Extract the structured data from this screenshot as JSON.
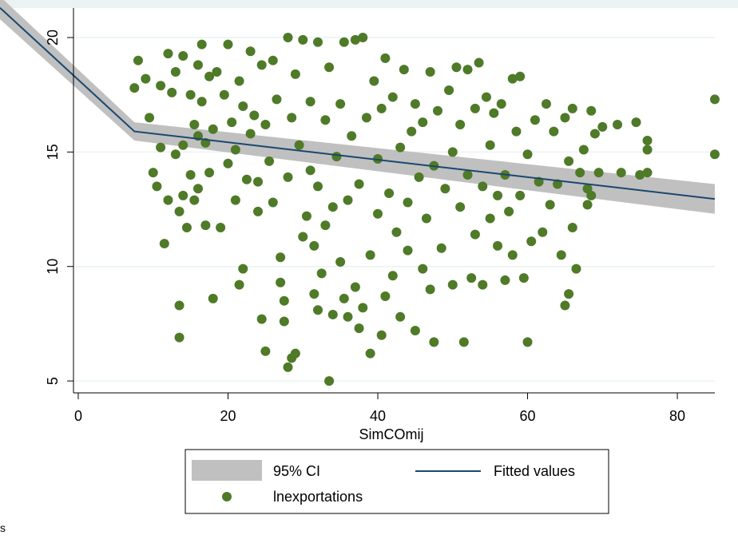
{
  "chart_data": {
    "type": "scatter",
    "x_label": "SimCOmij",
    "xlim": [
      -10.45,
      88.1
    ],
    "ylim": [
      4.48,
      21.64
    ],
    "xticks": [
      0,
      20,
      40,
      60,
      80
    ],
    "yticks": [
      5,
      10,
      15,
      20
    ],
    "grid": true,
    "ci": {
      "name": "95% CI",
      "color": "#c0c0c0",
      "x": [
        -10.45,
        7.5,
        85
      ],
      "lower": [
        20.8,
        15.5,
        12.3
      ],
      "upper": [
        21.8,
        16.3,
        13.6
      ]
    },
    "fit": {
      "name": "Fitted values",
      "color": "#1a476f",
      "x": [
        -10.45,
        7.5,
        85
      ],
      "values": [
        21.3,
        15.9,
        12.95
      ]
    },
    "series": [
      {
        "name": "lnexportations",
        "color": "#4f7a28",
        "x": [
          7.5,
          8,
          9,
          9.5,
          10,
          10.5,
          11,
          11,
          11.5,
          12,
          12,
          12.5,
          13,
          13,
          13.5,
          13.5,
          13.5,
          14,
          14,
          14,
          14.5,
          15,
          15,
          15.5,
          15.5,
          16,
          16,
          16,
          16.5,
          16.5,
          17,
          17,
          17.5,
          17.5,
          18,
          18,
          18.5,
          19,
          19.5,
          20,
          20,
          20.5,
          21,
          21,
          21.5,
          21.5,
          22,
          22,
          22.5,
          23,
          23,
          23.5,
          24,
          24,
          24.5,
          24.5,
          25,
          25,
          25.5,
          26,
          26,
          26.5,
          27,
          27,
          27.5,
          27.5,
          28,
          28,
          28,
          28.5,
          28.5,
          29,
          29,
          29.5,
          30,
          30,
          30.5,
          31,
          31,
          31.5,
          31.5,
          32,
          32,
          32,
          32.5,
          33,
          33,
          33.5,
          33.5,
          34,
          34,
          34.5,
          35,
          35,
          35.5,
          35.5,
          36,
          36,
          36.5,
          37,
          37,
          37.5,
          37.5,
          38,
          38,
          38.5,
          39,
          39,
          39.5,
          40,
          40,
          40.5,
          40.5,
          41,
          41,
          41.5,
          42,
          42,
          42.5,
          43,
          43,
          43.5,
          44,
          44,
          44.5,
          45,
          45,
          45.5,
          46,
          46,
          46.5,
          47,
          47,
          47.5,
          47.5,
          48,
          48.5,
          49,
          49.5,
          50,
          50,
          50.5,
          51,
          51,
          51.5,
          52,
          52,
          52.5,
          53,
          53,
          53.5,
          54,
          54,
          54.5,
          55,
          55,
          55.5,
          56,
          56,
          56.5,
          57,
          57,
          57.5,
          58,
          58,
          58.5,
          59,
          59,
          59.5,
          60,
          60,
          60.5,
          61,
          61.5,
          62,
          62.5,
          63,
          63.5,
          64,
          64.5,
          65,
          65,
          65.5,
          65.5,
          66,
          66,
          66.5,
          67,
          67.5,
          68,
          68,
          68.5,
          68.5,
          69,
          69.5,
          70,
          72,
          72.5,
          74.5,
          75,
          76,
          76,
          76,
          85,
          85
        ],
        "values": [
          17.8,
          19,
          18.2,
          16.5,
          14.1,
          13.5,
          17.9,
          15.2,
          11,
          19.3,
          12.9,
          17.6,
          18.5,
          14.9,
          8.3,
          6.9,
          12.4,
          19.2,
          15.3,
          13.1,
          11.7,
          17.5,
          14,
          16.2,
          12.9,
          18.8,
          15.7,
          13.4,
          19.7,
          17.2,
          15.4,
          11.8,
          18.3,
          14.1,
          8.6,
          16,
          18.5,
          11.7,
          17.5,
          19.7,
          14.5,
          16.3,
          15.1,
          12.9,
          9.2,
          18.1,
          9.9,
          17,
          13.8,
          19.4,
          15.8,
          16.6,
          13.7,
          12.4,
          7.7,
          18.8,
          16.2,
          6.3,
          14.6,
          19,
          12.8,
          17.3,
          10.4,
          9.3,
          8.5,
          7.6,
          20,
          5.6,
          13.9,
          6,
          16.5,
          6.2,
          18.4,
          15.3,
          19.9,
          11.3,
          12.2,
          14.2,
          17.2,
          8.8,
          10.9,
          8.1,
          19.8,
          13.5,
          9.7,
          11.8,
          16.4,
          5,
          18.7,
          12.6,
          7.9,
          14.8,
          10.2,
          17.1,
          8.6,
          19.8,
          7.8,
          12.9,
          15.7,
          9.1,
          19.9,
          7.3,
          13.6,
          20,
          8.2,
          16.5,
          10.5,
          6.2,
          18.1,
          12.3,
          14.7,
          7,
          16.9,
          8.7,
          19.1,
          13.2,
          9.6,
          17.4,
          11.5,
          15.2,
          7.8,
          18.6,
          12.8,
          10.7,
          15.9,
          7.2,
          17.1,
          13.9,
          9.9,
          16.3,
          12.1,
          9,
          18.5,
          6.7,
          14.4,
          16.8,
          10.8,
          13.4,
          17.7,
          9.2,
          15,
          18.7,
          12.6,
          16.2,
          6.7,
          14,
          18.6,
          9.5,
          16.9,
          11.4,
          18.9,
          13.5,
          9.2,
          17.4,
          12.1,
          15.3,
          16.7,
          10.9,
          13.1,
          17.1,
          9.4,
          14,
          12.4,
          18.2,
          10.5,
          15.9,
          18.3,
          13.1,
          9.5,
          6.7,
          14.9,
          11.1,
          16.4,
          13.7,
          11.5,
          17.1,
          12.7,
          15.9,
          13.6,
          10.5,
          16.5,
          8.3,
          8.8,
          14.6,
          16.9,
          11.7,
          9.9,
          14.1,
          15.1,
          13.4,
          12.7,
          16.8,
          13.1,
          15.8,
          14.1,
          16.1,
          16.2,
          14.1,
          16.3,
          14,
          15.5,
          15.1,
          14.1,
          17.3,
          14.9
        ]
      }
    ],
    "footer_fragment": "s"
  }
}
